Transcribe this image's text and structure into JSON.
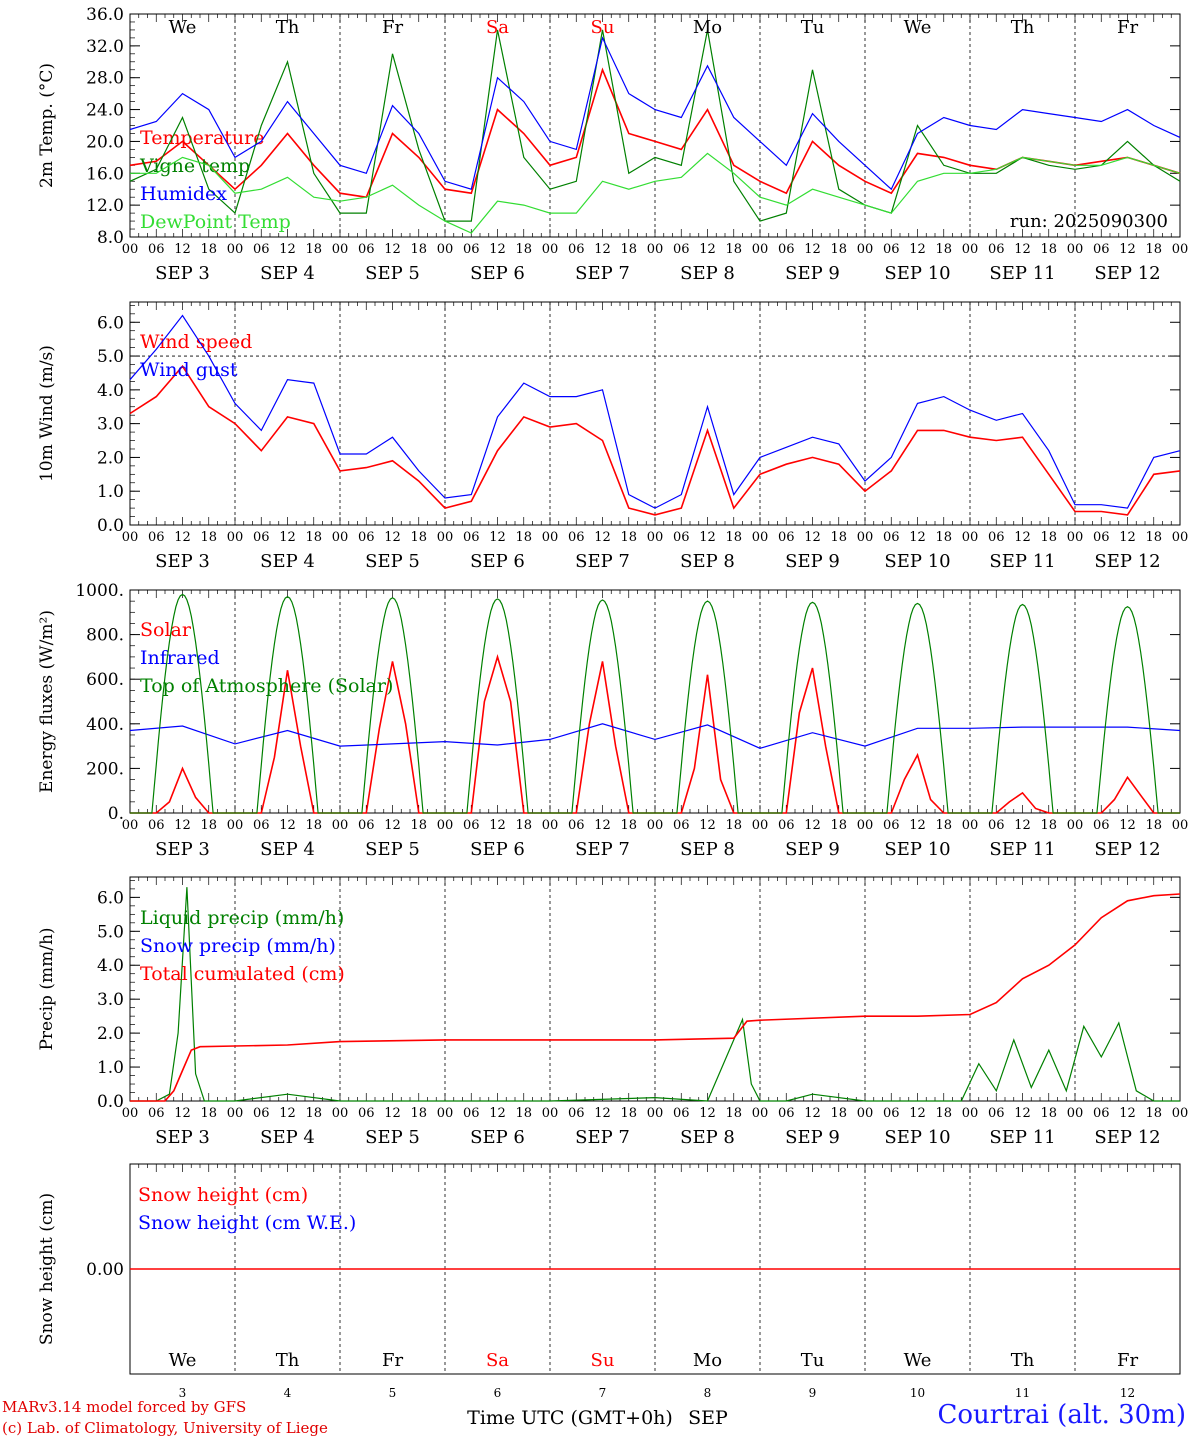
{
  "run_label": "run: 2025090300",
  "credits": {
    "line1": "MARv3.14 model forced by GFS",
    "line2": "(c) Lab. of Climatology, University of Liege"
  },
  "station": "Courtrai (alt. 30m)",
  "x_axis_title": "Time UTC (GMT+0h)",
  "month_label": "SEP",
  "colors": {
    "red": "#ff0000",
    "blue": "#0000ff",
    "green": "#008000",
    "lightgreen": "#33dd33",
    "weekend": "#ff0000",
    "text": "#000000"
  },
  "days": [
    {
      "abbr": "We",
      "date": "SEP  3",
      "num": "3",
      "weekend": false
    },
    {
      "abbr": "Th",
      "date": "SEP  4",
      "num": "4",
      "weekend": false
    },
    {
      "abbr": "Fr",
      "date": "SEP  5",
      "num": "5",
      "weekend": false
    },
    {
      "abbr": "Sa",
      "date": "SEP  6",
      "num": "6",
      "weekend": true
    },
    {
      "abbr": "Su",
      "date": "SEP  7",
      "num": "7",
      "weekend": true
    },
    {
      "abbr": "Mo",
      "date": "SEP  8",
      "num": "8",
      "weekend": false
    },
    {
      "abbr": "Tu",
      "date": "SEP  9",
      "num": "9",
      "weekend": false
    },
    {
      "abbr": "We",
      "date": "SEP 10",
      "num": "10",
      "weekend": false
    },
    {
      "abbr": "Th",
      "date": "SEP 11",
      "num": "11",
      "weekend": false
    },
    {
      "abbr": "Fr",
      "date": "SEP 12",
      "num": "12",
      "weekend": false
    }
  ],
  "hour_ticks": [
    "00",
    "06",
    "12",
    "18"
  ],
  "final_hour_tick": "00",
  "chart_data": [
    {
      "type": "line",
      "ylabel": "2m Temp. (°C)",
      "ylim": [
        8,
        36
      ],
      "yticks": [
        "8.0",
        "12.0",
        "16.0",
        "20.0",
        "24.0",
        "28.0",
        "32.0",
        "36.0"
      ],
      "x_unit": "hours since 00 UTC SEP 3",
      "series": [
        {
          "name": "Temperature",
          "color": "red",
          "x": [
            0,
            6,
            12,
            18,
            24,
            30,
            36,
            42,
            48,
            54,
            60,
            66,
            72,
            78,
            84,
            90,
            96,
            102,
            108,
            114,
            120,
            126,
            132,
            138,
            144,
            150,
            156,
            162,
            168,
            174,
            180,
            186,
            192,
            198,
            204,
            210,
            216,
            222,
            228,
            234,
            240
          ],
          "values": [
            17,
            17.5,
            20,
            17,
            14,
            17,
            21,
            17,
            13.5,
            13,
            21,
            18,
            14,
            13.5,
            24,
            21,
            17,
            18,
            29,
            21,
            20,
            19,
            24,
            17,
            15,
            13.5,
            20,
            17,
            15,
            13.5,
            18.5,
            18,
            17,
            16.5,
            18,
            17.5,
            17,
            17.5,
            18,
            17,
            16
          ]
        },
        {
          "name": "Vigne temp",
          "color": "green",
          "x": [
            0,
            6,
            12,
            18,
            24,
            30,
            36,
            42,
            48,
            54,
            60,
            66,
            72,
            78,
            84,
            90,
            96,
            102,
            108,
            114,
            120,
            126,
            132,
            138,
            144,
            150,
            156,
            162,
            168,
            174,
            180,
            186,
            192,
            198,
            204,
            210,
            216,
            222,
            228,
            234,
            240
          ],
          "values": [
            15,
            16.5,
            23,
            14,
            11,
            22,
            30,
            16,
            11,
            11,
            31,
            19,
            10,
            10,
            34,
            18,
            14,
            15,
            34,
            16,
            18,
            17,
            34,
            15,
            10,
            11,
            29,
            14,
            12,
            11,
            22,
            17,
            16,
            16,
            18,
            17,
            16.5,
            17,
            20,
            17,
            15
          ]
        },
        {
          "name": "Humidex",
          "color": "blue",
          "x": [
            0,
            6,
            12,
            18,
            24,
            30,
            36,
            42,
            48,
            54,
            60,
            66,
            72,
            78,
            84,
            90,
            96,
            102,
            108,
            114,
            120,
            126,
            132,
            138,
            144,
            150,
            156,
            162,
            168,
            174,
            180,
            186,
            192,
            198,
            204,
            210,
            216,
            222,
            228,
            234,
            240
          ],
          "values": [
            21.5,
            22.5,
            26,
            24,
            18,
            20,
            25,
            21,
            17,
            16,
            24.5,
            21,
            15,
            14,
            28,
            25,
            20,
            19,
            33,
            26,
            24,
            23,
            29.5,
            23,
            20,
            17,
            23.5,
            20,
            17,
            14,
            21,
            23,
            22,
            21.5,
            24,
            23.5,
            23,
            22.5,
            24,
            22,
            20.5
          ]
        },
        {
          "name": "DewPoint Temp",
          "color": "lightgreen",
          "x": [
            0,
            6,
            12,
            18,
            24,
            30,
            36,
            42,
            48,
            54,
            60,
            66,
            72,
            78,
            84,
            90,
            96,
            102,
            108,
            114,
            120,
            126,
            132,
            138,
            144,
            150,
            156,
            162,
            168,
            174,
            180,
            186,
            192,
            198,
            204,
            210,
            216,
            222,
            228,
            234,
            240
          ],
          "values": [
            16,
            16,
            18,
            17,
            13.5,
            14,
            15.5,
            13,
            12.5,
            13,
            14.5,
            12,
            10,
            8.5,
            12.5,
            12,
            11,
            11,
            15,
            14,
            15,
            15.5,
            18.5,
            16,
            13,
            12,
            14,
            13,
            12,
            11,
            15,
            16,
            16,
            16.5,
            18,
            17.5,
            17,
            17,
            18,
            17,
            16
          ]
        }
      ]
    },
    {
      "type": "line",
      "ylabel": "10m Wind (m/s)",
      "ylim": [
        0,
        6.6
      ],
      "yticks": [
        "0.0",
        "1.0",
        "2.0",
        "3.0",
        "4.0",
        "5.0",
        "6.0"
      ],
      "dashed_ref": 5.0,
      "series": [
        {
          "name": "Wind speed",
          "color": "red",
          "x": [
            0,
            6,
            12,
            18,
            24,
            30,
            36,
            42,
            48,
            54,
            60,
            66,
            72,
            78,
            84,
            90,
            96,
            102,
            108,
            114,
            120,
            126,
            132,
            138,
            144,
            150,
            156,
            162,
            168,
            174,
            180,
            186,
            192,
            198,
            204,
            210,
            216,
            222,
            228,
            234,
            240
          ],
          "values": [
            3.3,
            3.8,
            4.7,
            3.5,
            3.0,
            2.2,
            3.2,
            3.0,
            1.6,
            1.7,
            1.9,
            1.3,
            0.5,
            0.7,
            2.2,
            3.2,
            2.9,
            3.0,
            2.5,
            0.5,
            0.3,
            0.5,
            2.8,
            0.5,
            1.5,
            1.8,
            2.0,
            1.8,
            1.0,
            1.6,
            2.8,
            2.8,
            2.6,
            2.5,
            2.6,
            1.5,
            0.4,
            0.4,
            0.3,
            1.5,
            1.6
          ]
        },
        {
          "name": "Wind gust",
          "color": "blue",
          "x": [
            0,
            6,
            12,
            18,
            24,
            30,
            36,
            42,
            48,
            54,
            60,
            66,
            72,
            78,
            84,
            90,
            96,
            102,
            108,
            114,
            120,
            126,
            132,
            138,
            144,
            150,
            156,
            162,
            168,
            174,
            180,
            186,
            192,
            198,
            204,
            210,
            216,
            222,
            228,
            234,
            240
          ],
          "values": [
            4.3,
            5.2,
            6.2,
            5.0,
            3.6,
            2.8,
            4.3,
            4.2,
            2.1,
            2.1,
            2.6,
            1.6,
            0.8,
            0.9,
            3.2,
            4.2,
            3.8,
            3.8,
            4.0,
            0.9,
            0.5,
            0.9,
            3.5,
            0.9,
            2.0,
            2.3,
            2.6,
            2.4,
            1.3,
            2.0,
            3.6,
            3.8,
            3.4,
            3.1,
            3.3,
            2.2,
            0.6,
            0.6,
            0.5,
            2.0,
            2.2
          ]
        }
      ]
    },
    {
      "type": "line",
      "ylabel": "Energy fluxes (W/m²)",
      "ylim": [
        0,
        1000
      ],
      "yticks": [
        "0.",
        "200.",
        "400.",
        "600.",
        "800.",
        "1000."
      ],
      "series": [
        {
          "name": "Solar",
          "color": "red",
          "x": [
            0,
            6,
            9,
            12,
            15,
            18,
            24,
            30,
            33,
            36,
            39,
            42,
            48,
            54,
            57,
            60,
            63,
            66,
            72,
            78,
            81,
            84,
            87,
            90,
            96,
            102,
            105,
            108,
            111,
            114,
            120,
            126,
            129,
            132,
            135,
            138,
            144,
            150,
            153,
            156,
            159,
            162,
            168,
            174,
            177,
            180,
            183,
            186,
            192,
            198,
            201,
            204,
            207,
            210,
            216,
            222,
            225,
            228,
            231,
            234,
            240
          ],
          "values": [
            0,
            0,
            50,
            200,
            70,
            0,
            0,
            0,
            250,
            640,
            300,
            0,
            0,
            0,
            380,
            680,
            400,
            0,
            0,
            0,
            500,
            700,
            500,
            0,
            0,
            0,
            400,
            680,
            300,
            0,
            0,
            0,
            200,
            620,
            150,
            0,
            0,
            0,
            450,
            650,
            300,
            0,
            0,
            0,
            150,
            260,
            60,
            0,
            0,
            0,
            50,
            90,
            20,
            0,
            0,
            0,
            60,
            160,
            80,
            0,
            0
          ]
        },
        {
          "name": "Infrared",
          "color": "blue",
          "x": [
            0,
            12,
            24,
            36,
            48,
            60,
            72,
            84,
            96,
            108,
            120,
            132,
            144,
            156,
            168,
            180,
            192,
            204,
            216,
            228,
            240
          ],
          "values": [
            370,
            390,
            310,
            370,
            300,
            310,
            320,
            305,
            330,
            400,
            330,
            395,
            290,
            360,
            300,
            380,
            380,
            385,
            385,
            385,
            370
          ]
        },
        {
          "name": "Top of Atmosphere (Solar)",
          "color": "green",
          "peak": [
            980,
            970,
            965,
            960,
            955,
            950,
            945,
            940,
            935,
            925
          ]
        }
      ]
    },
    {
      "type": "line",
      "ylabel": "Precip (mm/h)",
      "ylim": [
        0,
        6.6
      ],
      "yticks": [
        "0.0",
        "1.0",
        "2.0",
        "3.0",
        "4.0",
        "5.0",
        "6.0"
      ],
      "series": [
        {
          "name": "Liquid precip (mm/h)",
          "color": "green",
          "x": [
            0,
            6,
            9,
            11,
            13,
            15,
            17,
            24,
            36,
            48,
            72,
            96,
            120,
            132,
            140,
            142,
            144,
            150,
            156,
            168,
            180,
            190,
            194,
            198,
            202,
            206,
            210,
            214,
            218,
            222,
            226,
            230,
            234,
            240
          ],
          "values": [
            0,
            0,
            0.2,
            2.0,
            6.3,
            0.8,
            0,
            0,
            0.2,
            0,
            0,
            0,
            0.1,
            0,
            2.4,
            0.5,
            0,
            0,
            0.2,
            0,
            0,
            0,
            1.1,
            0.3,
            1.8,
            0.4,
            1.5,
            0.3,
            2.2,
            1.3,
            2.3,
            0.3,
            0,
            0
          ]
        },
        {
          "name": "Snow precip (mm/h)",
          "color": "blue",
          "values": []
        },
        {
          "name": "Total cumulated (cm)",
          "color": "red",
          "x": [
            0,
            8,
            10,
            12,
            14,
            16,
            24,
            36,
            48,
            72,
            96,
            120,
            138,
            141,
            144,
            168,
            180,
            192,
            198,
            204,
            210,
            216,
            222,
            228,
            234,
            240
          ],
          "values": [
            0,
            0,
            0.3,
            0.9,
            1.5,
            1.6,
            1.62,
            1.65,
            1.75,
            1.8,
            1.8,
            1.8,
            1.85,
            2.35,
            2.38,
            2.5,
            2.5,
            2.55,
            2.9,
            3.6,
            4.0,
            4.6,
            5.4,
            5.9,
            6.05,
            6.1
          ]
        }
      ]
    },
    {
      "type": "line",
      "ylabel": "Snow height (cm)",
      "yticks": [
        "0.00"
      ],
      "series": [
        {
          "name": "Snow height (cm)",
          "color": "red",
          "x": [
            0,
            240
          ],
          "values": [
            0,
            0
          ]
        },
        {
          "name": "Snow height (cm W.E.)",
          "color": "blue",
          "values": []
        }
      ]
    }
  ]
}
